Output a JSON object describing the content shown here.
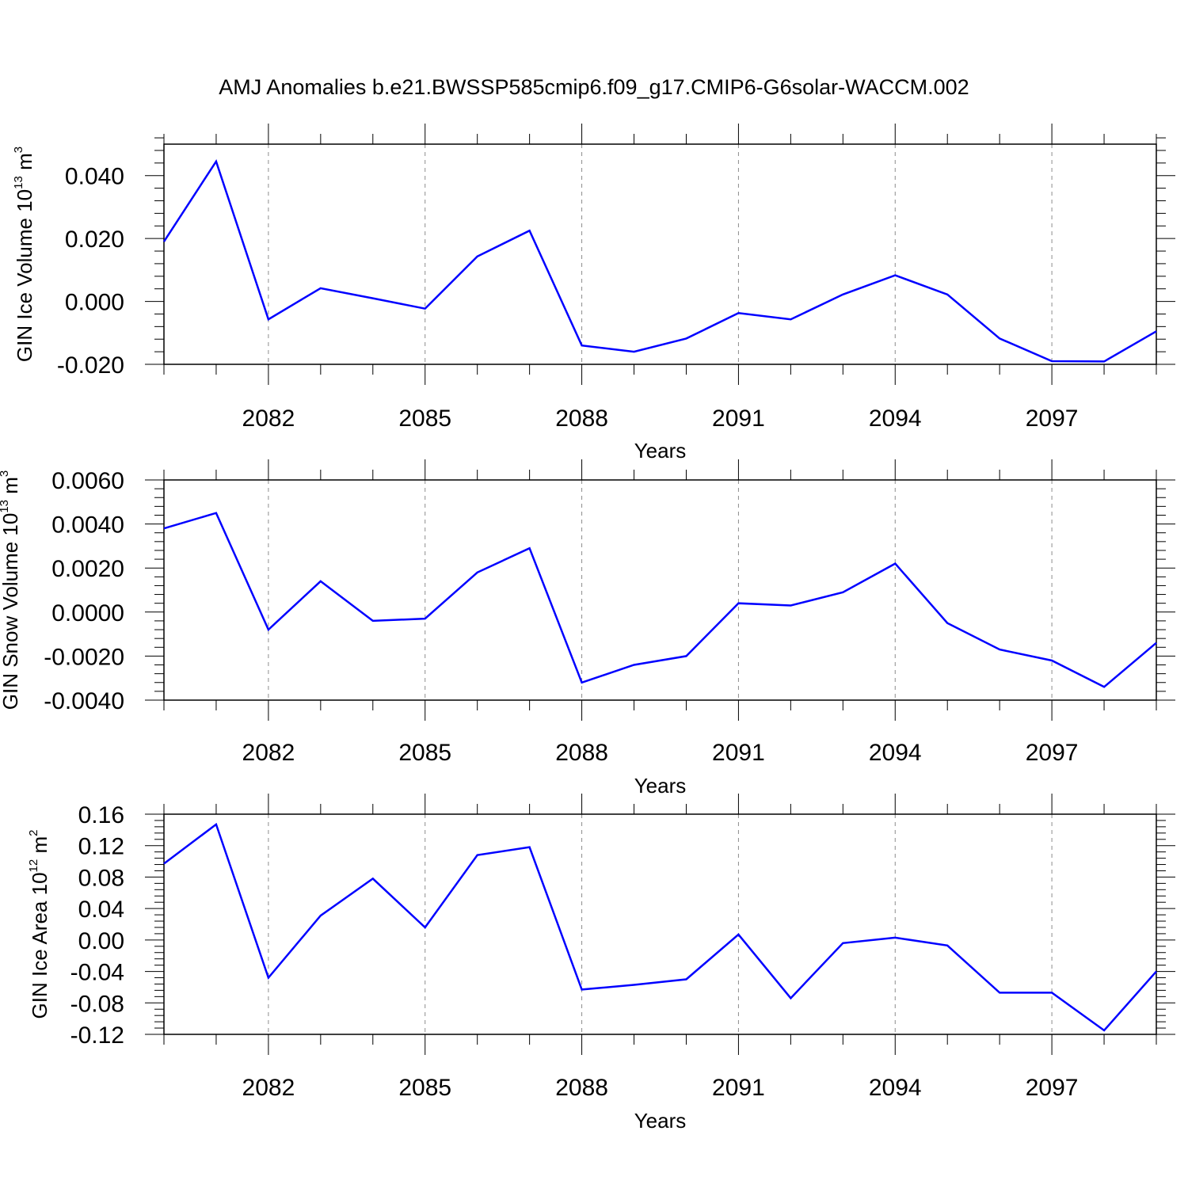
{
  "figure_title": "AMJ Anomalies b.e21.BWSSP585cmip6.f09_g17.CMIP6-G6solar-WACCM.002",
  "colors": {
    "line": "#0000ff",
    "axis": "#000000",
    "grid": "#8c8c8c"
  },
  "chart_data": [
    {
      "type": "line",
      "xlabel": "Years",
      "ylabel_parts": [
        "GIN Ice Volume 10",
        "13",
        " m",
        "3"
      ],
      "xlim": [
        2080,
        2099
      ],
      "ylim": [
        -0.02,
        0.05
      ],
      "x_ticks": [
        2082,
        2085,
        2088,
        2091,
        2094,
        2097
      ],
      "x_tick_labels": [
        "2082",
        "2085",
        "2088",
        "2091",
        "2094",
        "2097"
      ],
      "y_ticks": [
        -0.02,
        0.0,
        0.02,
        0.04
      ],
      "y_tick_labels": [
        "-0.020",
        "0.000",
        "0.020",
        "0.040"
      ],
      "grid": "vertical dashed at major x ticks",
      "x": [
        2080,
        2081,
        2082,
        2083,
        2084,
        2085,
        2086,
        2087,
        2088,
        2089,
        2090,
        2091,
        2092,
        2093,
        2094,
        2095,
        2096,
        2097,
        2098,
        2099
      ],
      "values": [
        0.019,
        0.0445,
        -0.0057,
        0.0042,
        0.001,
        -0.0023,
        0.0143,
        0.0225,
        -0.014,
        -0.016,
        -0.0118,
        -0.0037,
        -0.0057,
        0.0022,
        0.0083,
        0.0022,
        -0.0118,
        -0.019,
        -0.0191,
        -0.0095
      ]
    },
    {
      "type": "line",
      "xlabel": "Years",
      "ylabel_parts": [
        "GIN Snow Volume 10",
        "13",
        " m",
        "3"
      ],
      "xlim": [
        2080,
        2099
      ],
      "ylim": [
        -0.004,
        0.006
      ],
      "x_ticks": [
        2082,
        2085,
        2088,
        2091,
        2094,
        2097
      ],
      "x_tick_labels": [
        "2082",
        "2085",
        "2088",
        "2091",
        "2094",
        "2097"
      ],
      "y_ticks": [
        -0.004,
        -0.002,
        0.0,
        0.002,
        0.004,
        0.006
      ],
      "y_tick_labels": [
        "-0.0040",
        "-0.0020",
        "0.0000",
        "0.0020",
        "0.0040",
        "0.0060"
      ],
      "grid": "vertical dashed at major x ticks",
      "x": [
        2080,
        2081,
        2082,
        2083,
        2084,
        2085,
        2086,
        2087,
        2088,
        2089,
        2090,
        2091,
        2092,
        2093,
        2094,
        2095,
        2096,
        2097,
        2098,
        2099
      ],
      "values": [
        0.0038,
        0.0045,
        -0.0008,
        0.0014,
        -0.0004,
        -0.0003,
        0.0018,
        0.0029,
        -0.0032,
        -0.0024,
        -0.002,
        0.0004,
        0.0003,
        0.0009,
        0.0022,
        -0.0005,
        -0.0017,
        -0.0022,
        -0.0034,
        -0.0014
      ]
    },
    {
      "type": "line",
      "xlabel": "Years",
      "ylabel_parts": [
        "GIN Ice Area 10",
        "12",
        " m",
        "2"
      ],
      "xlim": [
        2080,
        2099
      ],
      "ylim": [
        -0.12,
        0.16
      ],
      "x_ticks": [
        2082,
        2085,
        2088,
        2091,
        2094,
        2097
      ],
      "x_tick_labels": [
        "2082",
        "2085",
        "2088",
        "2091",
        "2094",
        "2097"
      ],
      "y_ticks": [
        -0.12,
        -0.08,
        -0.04,
        0.0,
        0.04,
        0.08,
        0.12,
        0.16
      ],
      "y_tick_labels": [
        "-0.12",
        "-0.08",
        "-0.04",
        "0.00",
        "0.04",
        "0.08",
        "0.12",
        "0.16"
      ],
      "grid": "vertical dashed at major x ticks",
      "x": [
        2080,
        2081,
        2082,
        2083,
        2084,
        2085,
        2086,
        2087,
        2088,
        2089,
        2090,
        2091,
        2092,
        2093,
        2094,
        2095,
        2096,
        2097,
        2098,
        2099
      ],
      "values": [
        0.097,
        0.147,
        -0.048,
        0.031,
        0.078,
        0.016,
        0.108,
        0.118,
        -0.063,
        -0.057,
        -0.05,
        0.007,
        -0.074,
        -0.004,
        0.003,
        -0.007,
        -0.067,
        -0.067,
        -0.115,
        -0.04
      ]
    }
  ]
}
